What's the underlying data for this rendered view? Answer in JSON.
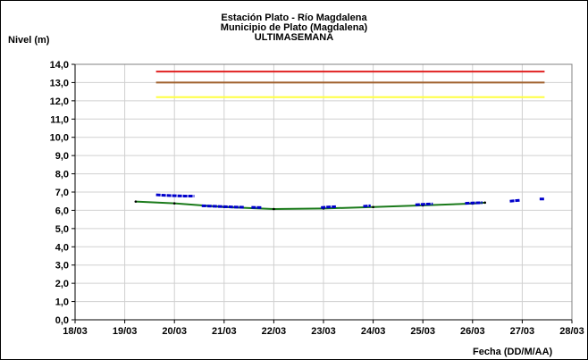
{
  "chart_data": {
    "type": "line",
    "title": [
      "Estación Plato - Río Magdalena",
      "Municipio de Plato (Magdalena)",
      "ULTIMASEMANA"
    ],
    "ylabel": "Nivel (m)",
    "xlabel": "Fecha (DD/M/AA)",
    "ylim": [
      0,
      14
    ],
    "y_ticks": [
      "0,0",
      "1,0",
      "2,0",
      "3,0",
      "4,0",
      "5,0",
      "6,0",
      "7,0",
      "8,0",
      "9,0",
      "10,0",
      "11,0",
      "12,0",
      "13,0",
      "14,0"
    ],
    "x_ticks": [
      "18/03",
      "19/03",
      "20/03",
      "21/03",
      "22/03",
      "23/03",
      "24/03",
      "25/03",
      "26/03",
      "27/03",
      "28/03"
    ],
    "xlim": [
      0,
      10
    ],
    "grid": true,
    "reference_lines": [
      {
        "color": "#e02020",
        "y": 13.6,
        "x_start": 1.63,
        "x_end": 9.45
      },
      {
        "color": "#a0622d",
        "y": 13.0,
        "x_start": 1.63,
        "x_end": 9.45
      },
      {
        "color": "#ffff40",
        "y": 12.2,
        "x_start": 1.63,
        "x_end": 9.45
      }
    ],
    "series": [
      {
        "color": "#0000cc",
        "segments": [
          {
            "x": [
              1.63,
              1.8,
              2.0,
              2.2,
              2.4
            ],
            "y": [
              6.85,
              6.82,
              6.8,
              6.78,
              6.78
            ]
          },
          {
            "x": [
              2.55,
              2.8,
              3.0,
              3.2,
              3.4
            ],
            "y": [
              6.25,
              6.22,
              6.2,
              6.18,
              6.17
            ]
          },
          {
            "x": [
              3.55,
              3.75
            ],
            "y": [
              6.16,
              6.15
            ]
          },
          {
            "x": [
              4.95,
              5.1,
              5.25
            ],
            "y": [
              6.15,
              6.18,
              6.2
            ]
          },
          {
            "x": [
              5.8,
              5.95
            ],
            "y": [
              6.22,
              6.25
            ]
          },
          {
            "x": [
              6.85,
              7.0,
              7.2
            ],
            "y": [
              6.3,
              6.33,
              6.35
            ]
          },
          {
            "x": [
              7.85,
              8.0,
              8.2
            ],
            "y": [
              6.38,
              6.4,
              6.42
            ]
          },
          {
            "x": [
              8.75,
              8.95
            ],
            "y": [
              6.5,
              6.55
            ]
          },
          {
            "x": [
              9.35,
              9.45
            ],
            "y": [
              6.62,
              6.62
            ]
          }
        ]
      },
      {
        "color": "#1a7a1a",
        "x": [
          1.22,
          2.0,
          3.0,
          4.0,
          5.0,
          6.0,
          7.0,
          8.0,
          8.25
        ],
        "y": [
          6.48,
          6.38,
          6.18,
          6.07,
          6.1,
          6.18,
          6.27,
          6.37,
          6.42
        ]
      }
    ]
  }
}
